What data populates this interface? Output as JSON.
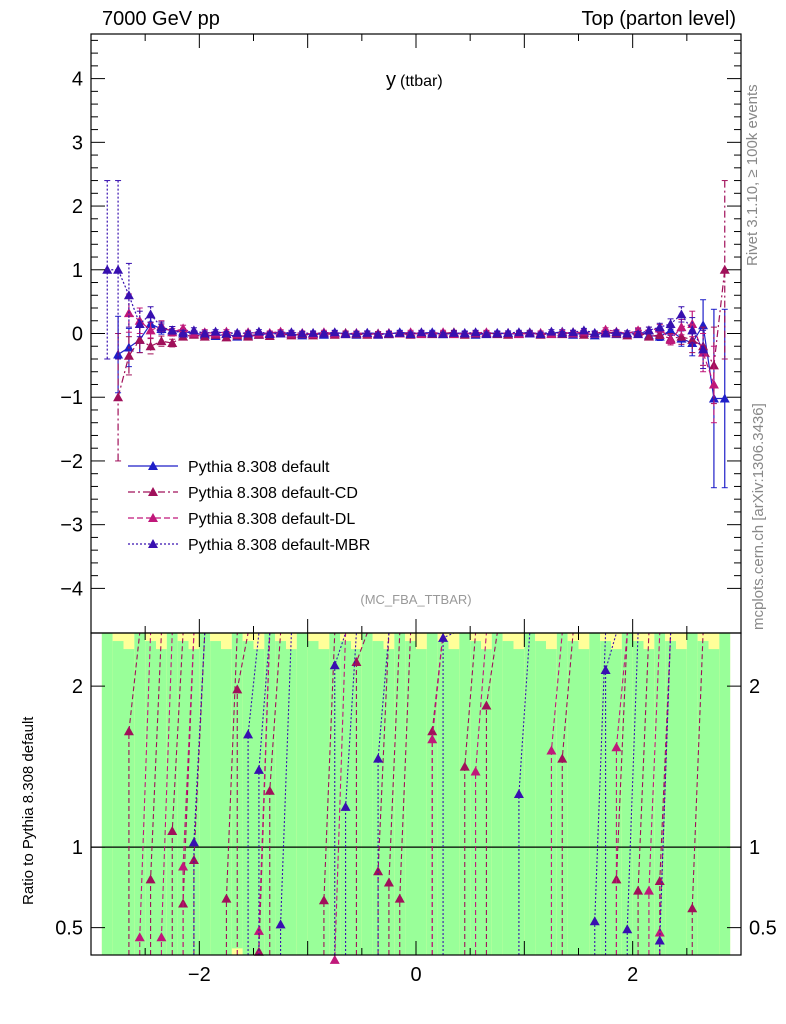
{
  "header": {
    "left": "7000 GeV pp",
    "right": "Top (parton level)"
  },
  "side_labels": {
    "rivet": "Rivet 3.1.10, ≥ 100k events",
    "mcplots": "mcplots.cern.ch [arXiv:1306.3436]"
  },
  "colors": {
    "default": "#1f1fc8",
    "CD": "#a0105a",
    "DL": "#c0187a",
    "MBR": "#3810b0",
    "band_green": "#99ff99",
    "band_yellow": "#ffff99"
  },
  "chart_data": [
    {
      "type": "scatter",
      "title": "y (ttbar)",
      "title_main": "y",
      "title_sub": "(ttbar)",
      "watermark": "(MC_FBA_TTBAR)",
      "xlim": [
        -3.0,
        3.0
      ],
      "ylim": [
        -4.7,
        4.7
      ],
      "yticks": [
        -4,
        -3,
        -2,
        -1,
        0,
        1,
        2,
        3,
        4
      ],
      "ytick_labels": [
        "−4",
        "−3",
        "−2",
        "−1",
        "0",
        "1",
        "2",
        "3",
        "4"
      ],
      "legend_position": "lower-left",
      "x": [
        -2.85,
        -2.75,
        -2.65,
        -2.55,
        -2.45,
        -2.35,
        -2.25,
        -2.15,
        -2.05,
        -1.95,
        -1.85,
        -1.75,
        -1.65,
        -1.55,
        -1.45,
        -1.35,
        -1.25,
        -1.15,
        -1.05,
        -0.95,
        -0.85,
        -0.75,
        -0.65,
        -0.55,
        -0.45,
        -0.35,
        -0.25,
        -0.15,
        -0.05,
        0.05,
        0.15,
        0.25,
        0.35,
        0.45,
        0.55,
        0.65,
        0.75,
        0.85,
        0.95,
        1.05,
        1.15,
        1.25,
        1.35,
        1.45,
        1.55,
        1.65,
        1.75,
        1.85,
        1.95,
        2.05,
        2.15,
        2.25,
        2.35,
        2.45,
        2.55,
        2.65,
        2.75,
        2.85
      ],
      "series": [
        {
          "name": "Pythia 8.308 default",
          "style": "solid",
          "values": [
            null,
            -0.33,
            -0.22,
            -0.1,
            0.15,
            0.07,
            0.05,
            0.03,
            0.0,
            -0.02,
            -0.04,
            -0.01,
            -0.05,
            -0.03,
            -0.02,
            0.0,
            0.02,
            -0.01,
            -0.03,
            0.0,
            -0.02,
            0.01,
            0.0,
            -0.02,
            0.01,
            0.0,
            -0.01,
            0.02,
            0.0,
            0.0,
            0.02,
            -0.01,
            0.0,
            0.01,
            -0.02,
            0.0,
            0.01,
            -0.01,
            0.0,
            0.02,
            -0.01,
            0.0,
            0.03,
            -0.02,
            0.01,
            -0.03,
            0.02,
            -0.01,
            0.0,
            0.04,
            -0.03,
            -0.05,
            0.05,
            -0.08,
            -0.15,
            0.13,
            -1.02,
            -1.02
          ],
          "err": [
            0,
            0.6,
            0.3,
            0.2,
            0.12,
            0.08,
            0.06,
            0.05,
            0.04,
            0.04,
            0.03,
            0.03,
            0.03,
            0.03,
            0.03,
            0.03,
            0.03,
            0.03,
            0.03,
            0.03,
            0.03,
            0.03,
            0.03,
            0.03,
            0.03,
            0.03,
            0.03,
            0.03,
            0.03,
            0.03,
            0.03,
            0.03,
            0.03,
            0.03,
            0.03,
            0.03,
            0.03,
            0.03,
            0.03,
            0.03,
            0.03,
            0.03,
            0.03,
            0.03,
            0.03,
            0.03,
            0.03,
            0.03,
            0.04,
            0.04,
            0.05,
            0.06,
            0.08,
            0.12,
            0.2,
            0.4,
            1.4,
            1.4
          ]
        },
        {
          "name": "Pythia 8.308 default-CD",
          "style": "dashdot",
          "values": [
            null,
            -1.0,
            -0.35,
            -0.1,
            -0.2,
            -0.12,
            -0.15,
            -0.05,
            -0.02,
            -0.05,
            -0.02,
            -0.06,
            -0.03,
            -0.05,
            -0.02,
            -0.04,
            0.0,
            -0.03,
            -0.01,
            -0.03,
            0.0,
            -0.02,
            0.01,
            -0.01,
            -0.02,
            0.0,
            -0.01,
            0.0,
            -0.02,
            0.01,
            -0.01,
            0.0,
            0.02,
            -0.02,
            0.0,
            0.01,
            -0.01,
            -0.02,
            0.0,
            0.01,
            -0.02,
            0.0,
            -0.01,
            0.02,
            -0.02,
            0.0,
            0.03,
            0.0,
            -0.03,
            0.02,
            -0.05,
            -0.02,
            -0.08,
            -0.05,
            -0.1,
            -0.2,
            -0.5,
            1.0
          ],
          "err": [
            0,
            1.0,
            0.3,
            0.2,
            0.12,
            0.08,
            0.06,
            0.05,
            0.04,
            0.04,
            0.03,
            0.03,
            0.03,
            0.03,
            0.03,
            0.03,
            0.03,
            0.03,
            0.03,
            0.03,
            0.03,
            0.03,
            0.03,
            0.03,
            0.03,
            0.03,
            0.03,
            0.03,
            0.03,
            0.03,
            0.03,
            0.03,
            0.03,
            0.03,
            0.03,
            0.03,
            0.03,
            0.03,
            0.03,
            0.03,
            0.03,
            0.03,
            0.03,
            0.03,
            0.03,
            0.03,
            0.03,
            0.03,
            0.04,
            0.04,
            0.05,
            0.06,
            0.08,
            0.12,
            0.2,
            0.3,
            0.6,
            1.4
          ]
        },
        {
          "name": "Pythia 8.308 default-DL",
          "style": "dashed",
          "values": [
            null,
            null,
            0.32,
            0.2,
            0.05,
            0.12,
            0.02,
            0.08,
            0.0,
            0.02,
            0.0,
            0.03,
            -0.01,
            0.02,
            0.0,
            0.01,
            0.03,
            0.0,
            0.01,
            -0.01,
            0.02,
            0.0,
            -0.01,
            0.01,
            0.0,
            -0.01,
            0.01,
            0.0,
            0.02,
            -0.01,
            0.0,
            0.02,
            -0.01,
            0.0,
            0.01,
            0.02,
            0.0,
            0.01,
            -0.01,
            0.0,
            0.01,
            -0.01,
            0.02,
            0.0,
            0.03,
            0.0,
            0.06,
            0.03,
            0.0,
            0.05,
            0.05,
            0.08,
            -0.1,
            0.1,
            0.15,
            -0.3,
            -0.8,
            null
          ],
          "err": [
            0,
            0,
            0.3,
            0.2,
            0.12,
            0.08,
            0.06,
            0.05,
            0.04,
            0.04,
            0.03,
            0.03,
            0.03,
            0.03,
            0.03,
            0.03,
            0.03,
            0.03,
            0.03,
            0.03,
            0.03,
            0.03,
            0.03,
            0.03,
            0.03,
            0.03,
            0.03,
            0.03,
            0.03,
            0.03,
            0.03,
            0.03,
            0.03,
            0.03,
            0.03,
            0.03,
            0.03,
            0.03,
            0.03,
            0.03,
            0.03,
            0.03,
            0.03,
            0.03,
            0.03,
            0.03,
            0.03,
            0.03,
            0.04,
            0.04,
            0.05,
            0.06,
            0.08,
            0.12,
            0.2,
            0.3,
            0.6,
            0
          ]
        },
        {
          "name": "Pythia 8.308 default-MBR",
          "style": "dotted",
          "values": [
            1.0,
            1.0,
            0.6,
            0.15,
            0.3,
            0.1,
            0.05,
            0.0,
            0.05,
            0.0,
            0.03,
            0.0,
            0.01,
            0.0,
            0.03,
            -0.01,
            0.0,
            0.02,
            0.0,
            0.01,
            0.0,
            0.02,
            -0.01,
            0.0,
            0.01,
            -0.02,
            0.0,
            0.01,
            -0.01,
            0.02,
            0.0,
            -0.01,
            0.01,
            0.0,
            0.02,
            -0.01,
            0.0,
            0.01,
            0.02,
            0.0,
            -0.01,
            0.03,
            0.0,
            0.02,
            0.05,
            0.01,
            0.0,
            0.02,
            0.0,
            -0.01,
            0.05,
            0.1,
            0.15,
            0.3,
            0.05,
            -0.25,
            null,
            null
          ],
          "err": [
            1.4,
            1.4,
            0.5,
            0.2,
            0.12,
            0.08,
            0.06,
            0.05,
            0.04,
            0.04,
            0.03,
            0.03,
            0.03,
            0.03,
            0.03,
            0.03,
            0.03,
            0.03,
            0.03,
            0.03,
            0.03,
            0.03,
            0.03,
            0.03,
            0.03,
            0.03,
            0.03,
            0.03,
            0.03,
            0.03,
            0.03,
            0.03,
            0.03,
            0.03,
            0.03,
            0.03,
            0.03,
            0.03,
            0.03,
            0.03,
            0.03,
            0.03,
            0.03,
            0.03,
            0.03,
            0.03,
            0.03,
            0.03,
            0.04,
            0.04,
            0.05,
            0.06,
            0.08,
            0.12,
            0.2,
            0.3,
            0,
            0
          ]
        }
      ]
    },
    {
      "type": "scatter",
      "ylabel": "Ratio to Pythia 8.308 default",
      "xlim": [
        -3.0,
        3.0
      ],
      "ylim": [
        0.33,
        2.33
      ],
      "xticks": [
        -2,
        0,
        2
      ],
      "xtick_labels": [
        "−2",
        "0",
        "2"
      ],
      "yticks": [
        0.5,
        1,
        2
      ],
      "ytick_labels": [
        "0.5",
        "1",
        "2"
      ],
      "reference_line": 1,
      "markers": [
        {
          "series": "Pythia 8.308 default-CD",
          "x": [
            -2.65,
            -2.45,
            -2.25,
            -2.15,
            -2.05,
            -1.75,
            -1.65,
            -1.45,
            -1.35,
            -0.85,
            -0.55,
            -0.35,
            -0.25,
            -0.15,
            0.15,
            0.45,
            0.65,
            1.35,
            1.85,
            2.05,
            2.25,
            2.55
          ],
          "values": [
            1.72,
            0.8,
            1.1,
            0.65,
            0.92,
            0.68,
            1.98,
            0.35,
            1.35,
            0.67,
            2.15,
            0.85,
            0.78,
            0.68,
            1.72,
            1.5,
            1.88,
            1.55,
            0.8,
            0.73,
            0.79,
            0.62
          ]
        },
        {
          "series": "Pythia 8.308 default-DL",
          "x": [
            -2.55,
            -2.35,
            -2.15,
            -1.45,
            -0.75,
            0.15,
            0.55,
            1.25,
            1.85,
            2.15,
            2.25
          ],
          "values": [
            0.44,
            0.44,
            0.88,
            0.48,
            0.3,
            1.67,
            1.47,
            1.6,
            1.62,
            0.73,
            0.47
          ]
        },
        {
          "series": "Pythia 8.308 default-MBR",
          "x": [
            -2.05,
            -1.55,
            -1.45,
            -1.25,
            -0.75,
            -0.65,
            -0.35,
            0.25,
            0.95,
            1.65,
            1.75,
            1.95,
            2.25
          ],
          "values": [
            1.03,
            1.7,
            1.48,
            0.52,
            2.13,
            1.25,
            1.55,
            2.3,
            1.33,
            0.54,
            2.1,
            0.49,
            0.42
          ]
        }
      ]
    }
  ]
}
